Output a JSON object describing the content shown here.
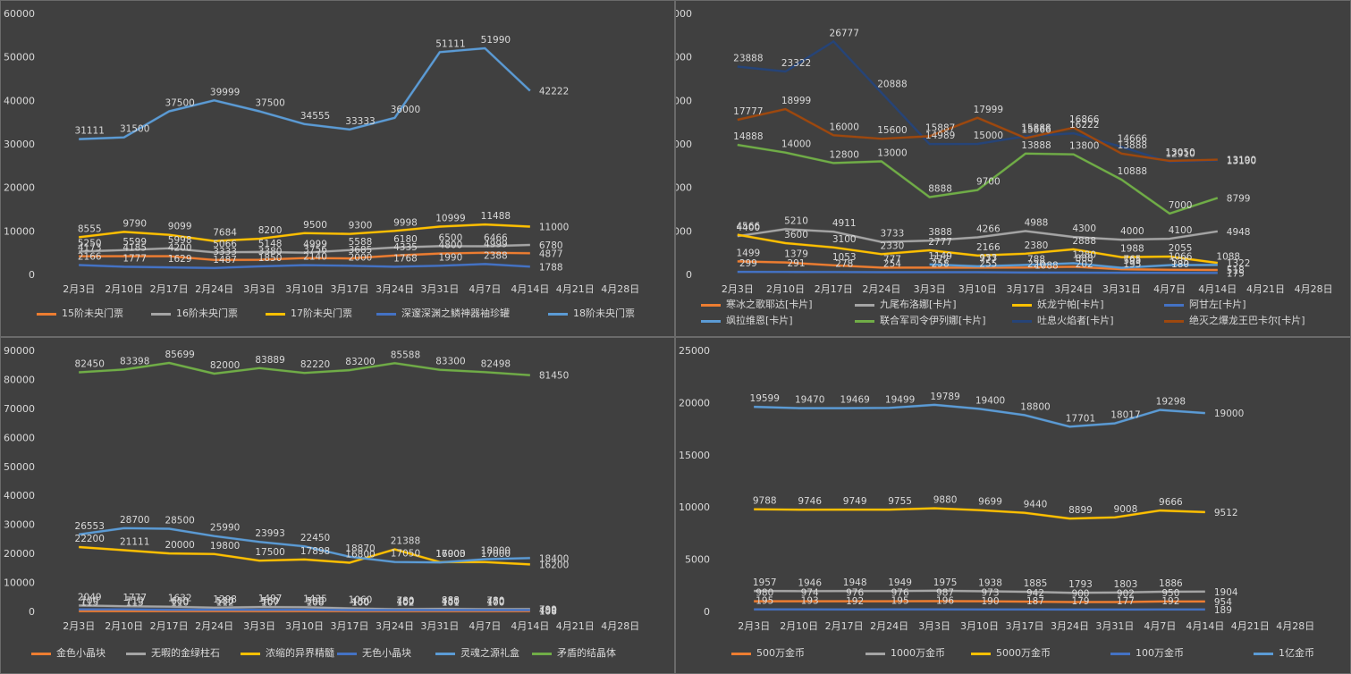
{
  "chart_data": [
    {
      "type": "line",
      "categories": [
        "2月3日",
        "2月10日",
        "2月17日",
        "2月24日",
        "3月3日",
        "3月10日",
        "3月17日",
        "3月24日",
        "3月31日",
        "4月7日",
        "4月14日",
        "4月21日",
        "4月28日"
      ],
      "ylim": [
        0,
        60000
      ],
      "yticks": [
        0,
        10000,
        20000,
        30000,
        40000,
        50000,
        60000
      ],
      "legend_position": "bottom",
      "series": [
        {
          "name": "15阶未央门票",
          "color": "#ed7d31",
          "values": [
            4173,
            4185,
            4200,
            3333,
            3380,
            3756,
            3685,
            4335,
            4800,
            4999,
            4877,
            null,
            null
          ]
        },
        {
          "name": "16阶未央门票",
          "color": "#a5a5a5",
          "values": [
            5250,
            5599,
            5998,
            5066,
            5148,
            4999,
            5588,
            6180,
            6500,
            6466,
            6780,
            null,
            null
          ]
        },
        {
          "name": "17阶未央门票",
          "color": "#ffc000",
          "values": [
            8555,
            9790,
            9099,
            7684,
            8200,
            9500,
            9300,
            9998,
            10999,
            11488,
            11000,
            null,
            null
          ]
        },
        {
          "name": "深邃深渊之鳞神器袖珍罐",
          "color": "#4472c4",
          "values": [
            2166,
            1777,
            1629,
            1487,
            1850,
            2140,
            2000,
            1768,
            1990,
            2388,
            1788,
            null,
            null
          ]
        },
        {
          "name": "18阶未央门票",
          "color": "#5b9bd5",
          "values": [
            31111,
            31500,
            37500,
            39999,
            37500,
            34555,
            33333,
            36000,
            51111,
            51990,
            42222,
            null,
            null
          ]
        }
      ]
    },
    {
      "type": "line",
      "categories": [
        "2月3日",
        "2月10日",
        "2月17日",
        "2月24日",
        "3月3日",
        "3月10日",
        "3月17日",
        "3月24日",
        "3月31日",
        "4月7日",
        "4月14日",
        "4月21日",
        "4月28日"
      ],
      "ylim": [
        0,
        30000
      ],
      "yticks": [
        0,
        5000,
        10000,
        15000,
        20000,
        25000,
        30000
      ],
      "legend_position": "bottom",
      "series": [
        {
          "name": "寒冰之歌耶达[卡片]",
          "color": "#ed7d31",
          "values": [
            1499,
            1379,
            1053,
            777,
            777,
            777,
            788,
            888,
            595,
            535,
            518,
            null,
            null
          ]
        },
        {
          "name": "九尾布洛娜[卡片]",
          "color": "#a5a5a5",
          "values": [
            4400,
            5210,
            4911,
            3733,
            3888,
            4266,
            4988,
            4300,
            4000,
            4100,
            4948,
            null,
            null
          ]
        },
        {
          "name": "妖龙宁帕[卡片]",
          "color": "#ffc000",
          "values": [
            4566,
            3600,
            3100,
            2330,
            2777,
            2166,
            2380,
            2888,
            1988,
            2055,
            1322,
            null,
            null
          ]
        },
        {
          "name": "阿甘左[卡片]",
          "color": "#4472c4",
          "values": [
            299,
            291,
            278,
            254,
            258,
            255,
            220,
            202,
            195,
            180,
            175,
            null,
            null
          ]
        },
        {
          "name": "飒拉维恩[卡片]",
          "color": "#5b9bd5",
          "values": [
            null,
            null,
            null,
            null,
            1149,
            933,
            1088,
            1280,
            765,
            1066,
            1088,
            null,
            null
          ]
        },
        {
          "name": "联合军司令伊列娜[卡片]",
          "color": "#70ad47",
          "values": [
            14888,
            14000,
            12800,
            13000,
            8888,
            9700,
            13888,
            13800,
            10888,
            7000,
            8799,
            null,
            null
          ]
        },
        {
          "name": "吐息火焰者[卡片]",
          "color": "#264478",
          "values": [
            23888,
            23322,
            26777,
            20888,
            14989,
            15000,
            15888,
            16222,
            14666,
            12910,
            13100,
            null,
            null
          ]
        },
        {
          "name": "绝灭之爆龙王巴卡尔[卡片]",
          "color": "#9e480e",
          "values": [
            17777,
            18999,
            16000,
            15600,
            15887,
            17999,
            15666,
            16866,
            13888,
            13050,
            13190,
            null,
            null
          ]
        }
      ]
    },
    {
      "type": "line",
      "categories": [
        "2月3日",
        "2月10日",
        "2月17日",
        "2月24日",
        "3月3日",
        "3月10日",
        "3月17日",
        "3月24日",
        "3月31日",
        "4月7日",
        "4月14日",
        "4月21日",
        "4月28日"
      ],
      "ylim": [
        0,
        90000
      ],
      "yticks": [
        0,
        10000,
        20000,
        30000,
        40000,
        50000,
        60000,
        70000,
        80000,
        90000
      ],
      "legend_position": "bottom",
      "series": [
        {
          "name": "金色小晶块",
          "color": "#ed7d31",
          "values": [
            115,
            113,
            110,
            112,
            107,
            108,
            100,
            102,
            101,
            100,
            108,
            null,
            null
          ]
        },
        {
          "name": "无暇的金绿柱石",
          "color": "#a5a5a5",
          "values": [
            2049,
            1777,
            1632,
            1298,
            1497,
            1435,
            1060,
            780,
            888,
            780,
            799,
            null,
            null
          ]
        },
        {
          "name": "浓缩的异界精髓",
          "color": "#ffc000",
          "values": [
            22200,
            21111,
            20000,
            19800,
            17500,
            17898,
            16800,
            21388,
            17003,
            17000,
            16200,
            null,
            null
          ]
        },
        {
          "name": "无色小晶块",
          "color": "#4472c4",
          "values": [
            700,
            710,
            600,
            580,
            560,
            590,
            450,
            460,
            450,
            470,
            450,
            null,
            null
          ]
        },
        {
          "name": "灵魂之源礼盒",
          "color": "#5b9bd5",
          "values": [
            26553,
            28700,
            28500,
            25990,
            23993,
            22450,
            18870,
            17050,
            16900,
            18000,
            18400,
            null,
            null
          ]
        },
        {
          "name": "矛盾的结晶体",
          "color": "#70ad47",
          "values": [
            82450,
            83398,
            85699,
            82000,
            83889,
            82220,
            83200,
            85588,
            83300,
            82498,
            81450,
            null,
            null
          ]
        }
      ]
    },
    {
      "type": "line",
      "categories": [
        "2月3日",
        "2月10日",
        "2月17日",
        "2月24日",
        "3月3日",
        "3月10日",
        "3月17日",
        "3月24日",
        "3月31日",
        "4月7日",
        "4月14日",
        "4月21日",
        "4月28日"
      ],
      "ylim": [
        0,
        25000
      ],
      "yticks": [
        0,
        5000,
        10000,
        15000,
        20000,
        25000
      ],
      "legend_position": "bottom",
      "series": [
        {
          "name": "500万金币",
          "color": "#ed7d31",
          "values": [
            980,
            974,
            976,
            976,
            987,
            973,
            942,
            900,
            902,
            950,
            954,
            null,
            null
          ]
        },
        {
          "name": "1000万金币",
          "color": "#a5a5a5",
          "values": [
            1957,
            1946,
            1948,
            1949,
            1975,
            1938,
            1885,
            1793,
            1803,
            1886,
            1904,
            null,
            null
          ]
        },
        {
          "name": "5000万金币",
          "color": "#ffc000",
          "values": [
            9788,
            9746,
            9749,
            9755,
            9880,
            9699,
            9440,
            8899,
            9008,
            9666,
            9512,
            null,
            null
          ]
        },
        {
          "name": "100万金币",
          "color": "#4472c4",
          "values": [
            195,
            193,
            192,
            195,
            196,
            190,
            187,
            179,
            177,
            192,
            189,
            null,
            null
          ]
        },
        {
          "name": "1亿金币",
          "color": "#5b9bd5",
          "values": [
            19599,
            19470,
            19469,
            19499,
            19789,
            19400,
            18800,
            17701,
            18017,
            19298,
            19000,
            null,
            null
          ]
        }
      ]
    }
  ]
}
